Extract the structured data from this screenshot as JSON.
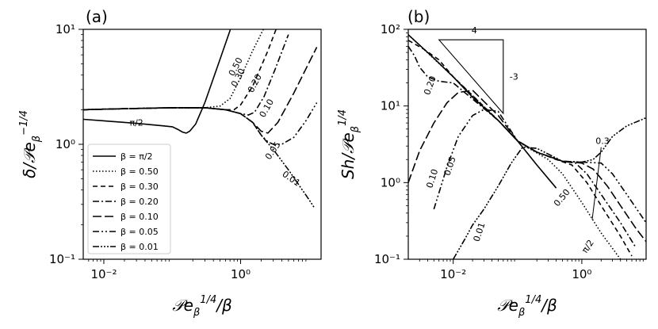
{
  "styles": {
    "solid": "",
    "dot": "1.5,2.5",
    "dash": "6,4",
    "dashdot": "8,3,2,3",
    "longdash": "11,4",
    "dashdotdot": "8,3,2,3,2,3",
    "dashdotdotdot": "8,2,2,2,2,2,2,2"
  },
  "chart_data": [
    {
      "type": "line",
      "panel_label": "(a)",
      "xlabel": "𝒫e_β^{1/4}/β",
      "ylabel": "δ/𝒫e_β^{−1/4}",
      "xscale": "log",
      "yscale": "log",
      "xlim": [
        0.005,
        15
      ],
      "ylim": [
        0.1,
        10
      ],
      "xticks": [
        {
          "value": 0.01,
          "label": "10⁻²"
        },
        {
          "value": 1,
          "label": "10⁰"
        }
      ],
      "yticks": [
        {
          "value": 0.1,
          "label": "10⁻¹"
        },
        {
          "value": 1,
          "label": "10⁰"
        },
        {
          "value": 10,
          "label": "10¹"
        }
      ],
      "legend": {
        "position": "lower-left",
        "entries": [
          {
            "label": "β = π/2",
            "style": "solid"
          },
          {
            "label": "β = 0.50",
            "style": "dot"
          },
          {
            "label": "β = 0.30",
            "style": "dash"
          },
          {
            "label": "β = 0.20",
            "style": "dashdot"
          },
          {
            "label": "β = 0.10",
            "style": "longdash"
          },
          {
            "label": "β = 0.05",
            "style": "dashdotdot"
          },
          {
            "label": "β = 0.01",
            "style": "dashdotdotdot"
          }
        ]
      },
      "series": [
        {
          "name": "β = π/2",
          "style": "solid",
          "x": [
            0.005,
            0.01,
            0.03,
            0.07,
            0.1,
            0.12,
            0.14,
            0.16,
            0.18,
            0.22,
            0.3,
            0.5,
            1.0
          ],
          "y": [
            1.65,
            1.6,
            1.52,
            1.45,
            1.42,
            1.35,
            1.28,
            1.25,
            1.3,
            1.5,
            2.3,
            5.5,
            18
          ]
        },
        {
          "name": "β = 0.50",
          "style": "dot",
          "x": [
            0.005,
            0.01,
            0.03,
            0.1,
            0.3,
            0.5,
            0.7,
            1.0,
            1.5,
            2.5
          ],
          "y": [
            2.0,
            2.02,
            2.05,
            2.08,
            2.08,
            2.15,
            2.5,
            3.8,
            6.5,
            12
          ]
        },
        {
          "name": "β = 0.30",
          "style": "dash",
          "x": [
            0.005,
            0.01,
            0.03,
            0.1,
            0.3,
            0.6,
            0.8,
            1.0,
            1.5,
            2.5,
            3.5
          ],
          "y": [
            2.0,
            2.02,
            2.05,
            2.08,
            2.08,
            2.0,
            2.0,
            2.2,
            3.2,
            6.5,
            11
          ]
        },
        {
          "name": "β = 0.20",
          "style": "dashdot",
          "x": [
            0.005,
            0.01,
            0.03,
            0.1,
            0.3,
            0.6,
            1.0,
            1.3,
            1.6,
            2.2,
            3.2,
            5.0
          ],
          "y": [
            2.0,
            2.02,
            2.05,
            2.08,
            2.08,
            2.0,
            1.85,
            1.8,
            1.9,
            2.6,
            4.5,
            9
          ]
        },
        {
          "name": "β = 0.10",
          "style": "longdash",
          "x": [
            0.005,
            0.01,
            0.03,
            0.1,
            0.3,
            0.6,
            1.0,
            1.5,
            2.0,
            2.5,
            3.5,
            6.0,
            13.0
          ],
          "y": [
            2.0,
            2.02,
            2.05,
            2.08,
            2.08,
            2.0,
            1.85,
            1.55,
            1.3,
            1.25,
            1.55,
            2.8,
            7
          ]
        },
        {
          "name": "β = 0.05",
          "style": "dashdotdot",
          "x": [
            0.005,
            0.01,
            0.03,
            0.1,
            0.3,
            0.6,
            1.0,
            1.5,
            2.0,
            2.5,
            3.0,
            4.0,
            6.0,
            9.0,
            13.0
          ],
          "y": [
            2.0,
            2.02,
            2.05,
            2.08,
            2.08,
            2.0,
            1.85,
            1.55,
            1.2,
            1.05,
            1.0,
            1.0,
            1.15,
            1.6,
            2.3
          ]
        },
        {
          "name": "β = 0.01",
          "style": "dashdotdotdot",
          "x": [
            0.005,
            0.01,
            0.03,
            0.1,
            0.3,
            0.6,
            1.0,
            1.5,
            2.0,
            3.0,
            5.0,
            8.0,
            10.0,
            12.0
          ],
          "y": [
            2.0,
            2.02,
            2.05,
            2.08,
            2.08,
            2.0,
            1.85,
            1.55,
            1.2,
            0.9,
            0.6,
            0.4,
            0.33,
            0.28
          ]
        }
      ],
      "annotations": [
        {
          "text": "π/2",
          "x": 0.03,
          "y": 1.45,
          "rotate": 0
        },
        {
          "text": "0.50",
          "x": 0.92,
          "y": 4.6,
          "rotate": -62
        },
        {
          "text": "0.30",
          "x": 1.0,
          "y": 3.7,
          "rotate": -62
        },
        {
          "text": "0.20",
          "x": 1.75,
          "y": 3.3,
          "rotate": -62
        },
        {
          "text": "0.10",
          "x": 2.6,
          "y": 2.0,
          "rotate": -60
        },
        {
          "text": "0.05",
          "x": 3.2,
          "y": 0.85,
          "rotate": -55
        },
        {
          "text": "0.01",
          "x": 5.2,
          "y": 0.48,
          "rotate": 35
        }
      ]
    },
    {
      "type": "line",
      "panel_label": "(b)",
      "xlabel": "𝒫e_β^{1/4}/β",
      "ylabel": "Sh/𝒫e_β^{1/4}",
      "xscale": "log",
      "yscale": "log",
      "xlim": [
        0.002,
        10
      ],
      "ylim": [
        0.1,
        100
      ],
      "xticks": [
        {
          "value": 0.01,
          "label": "10⁻²"
        },
        {
          "value": 1,
          "label": "10⁰"
        }
      ],
      "yticks": [
        {
          "value": 0.1,
          "label": "10⁻¹"
        },
        {
          "value": 1,
          "label": "10⁰"
        },
        {
          "value": 10,
          "label": "10¹"
        },
        {
          "value": 100,
          "label": "10²"
        }
      ],
      "triangle": {
        "x": [
          0.006,
          0.06
        ],
        "y": [
          73,
          8
        ],
        "label_top": "4",
        "label_side": "-3"
      },
      "series": [
        {
          "name": "β = π/2",
          "style": "solid",
          "x": [
            0.002,
            0.005,
            0.01,
            0.02,
            0.05,
            0.1,
            0.2,
            0.4
          ],
          "y": [
            85,
            42,
            24,
            13,
            6.5,
            3.5,
            1.7,
            0.85
          ]
        },
        {
          "name": "β = 0.50",
          "style": "dot",
          "x": [
            0.002,
            0.01,
            0.05,
            0.1,
            0.15,
            0.3,
            0.5,
            1.0,
            2.0,
            4.0
          ],
          "y": [
            85,
            24,
            6.5,
            3.5,
            2.8,
            2.0,
            1.3,
            0.55,
            0.22,
            0.1
          ]
        },
        {
          "name": "β = 0.30",
          "style": "dash",
          "x": [
            0.002,
            0.0035,
            0.006,
            0.01,
            0.05,
            0.1,
            0.2,
            0.4,
            0.7,
            1.2,
            2.0,
            4.0,
            6.0
          ],
          "y": [
            72,
            55,
            40,
            24,
            6.5,
            3.5,
            2.5,
            2.0,
            1.7,
            1.0,
            0.5,
            0.2,
            0.11
          ]
        },
        {
          "name": "β = 0.20",
          "style": "dashdot",
          "x": [
            0.002,
            0.0025,
            0.003,
            0.004,
            0.006,
            0.01,
            0.05,
            0.1,
            0.2,
            0.5,
            0.8,
            1.2,
            2.0,
            4.0,
            7.0
          ],
          "y": [
            60,
            45,
            32,
            24,
            21,
            20,
            6.5,
            3.5,
            2.5,
            1.9,
            1.8,
            1.3,
            0.7,
            0.3,
            0.14
          ]
        },
        {
          "name": "β = 0.10",
          "style": "longdash",
          "x": [
            0.002,
            0.003,
            0.005,
            0.008,
            0.012,
            0.02,
            0.05,
            0.1,
            0.2,
            0.5,
            1.0,
            1.5,
            2.5,
            4.0,
            7.0,
            10.0
          ],
          "y": [
            1.0,
            2.6,
            6.0,
            11.0,
            15.0,
            16.0,
            7.5,
            3.5,
            2.5,
            1.9,
            1.8,
            1.5,
            0.9,
            0.5,
            0.25,
            0.17
          ]
        },
        {
          "name": "β = 0.05",
          "style": "dashdotdot",
          "x": [
            0.005,
            0.008,
            0.012,
            0.02,
            0.03,
            0.05,
            0.1,
            0.2,
            0.5,
            1.0,
            2.0,
            3.0,
            5.0,
            10.0
          ],
          "y": [
            0.45,
            1.6,
            4.0,
            7.5,
            9.0,
            8.5,
            3.5,
            2.5,
            1.9,
            1.85,
            1.8,
            1.3,
            0.7,
            0.3
          ]
        },
        {
          "name": "β = 0.01",
          "style": "dashdotdotdot",
          "x": [
            0.01,
            0.015,
            0.02,
            0.03,
            0.05,
            0.08,
            0.12,
            0.2,
            0.5,
            1.0,
            1.5,
            2.0,
            3.0,
            5.0,
            10.0
          ],
          "y": [
            0.1,
            0.18,
            0.28,
            0.45,
            0.9,
            1.8,
            2.9,
            2.8,
            1.9,
            1.85,
            2.0,
            2.5,
            4.0,
            5.5,
            7.0
          ]
        }
      ],
      "annotations": [
        {
          "text": "0.20",
          "x": 0.0048,
          "y": 18,
          "rotate": -70
        },
        {
          "text": "0.10",
          "x": 0.0052,
          "y": 1.1,
          "rotate": -72
        },
        {
          "text": "0.05",
          "x": 0.0098,
          "y": 1.6,
          "rotate": -72
        },
        {
          "text": "0.01",
          "x": 0.028,
          "y": 0.22,
          "rotate": -72
        },
        {
          "text": "0.50",
          "x": 0.53,
          "y": 0.6,
          "rotate": -50
        },
        {
          "text": "π/2",
          "x": 1.35,
          "y": 0.14,
          "rotate": -55
        },
        {
          "text": "0.3",
          "x": 2.1,
          "y": 3.2,
          "rotate": 0
        }
      ],
      "pointer": {
        "from": [
          2.0,
          2.9
        ],
        "to": [
          1.45,
          0.33
        ]
      }
    }
  ]
}
